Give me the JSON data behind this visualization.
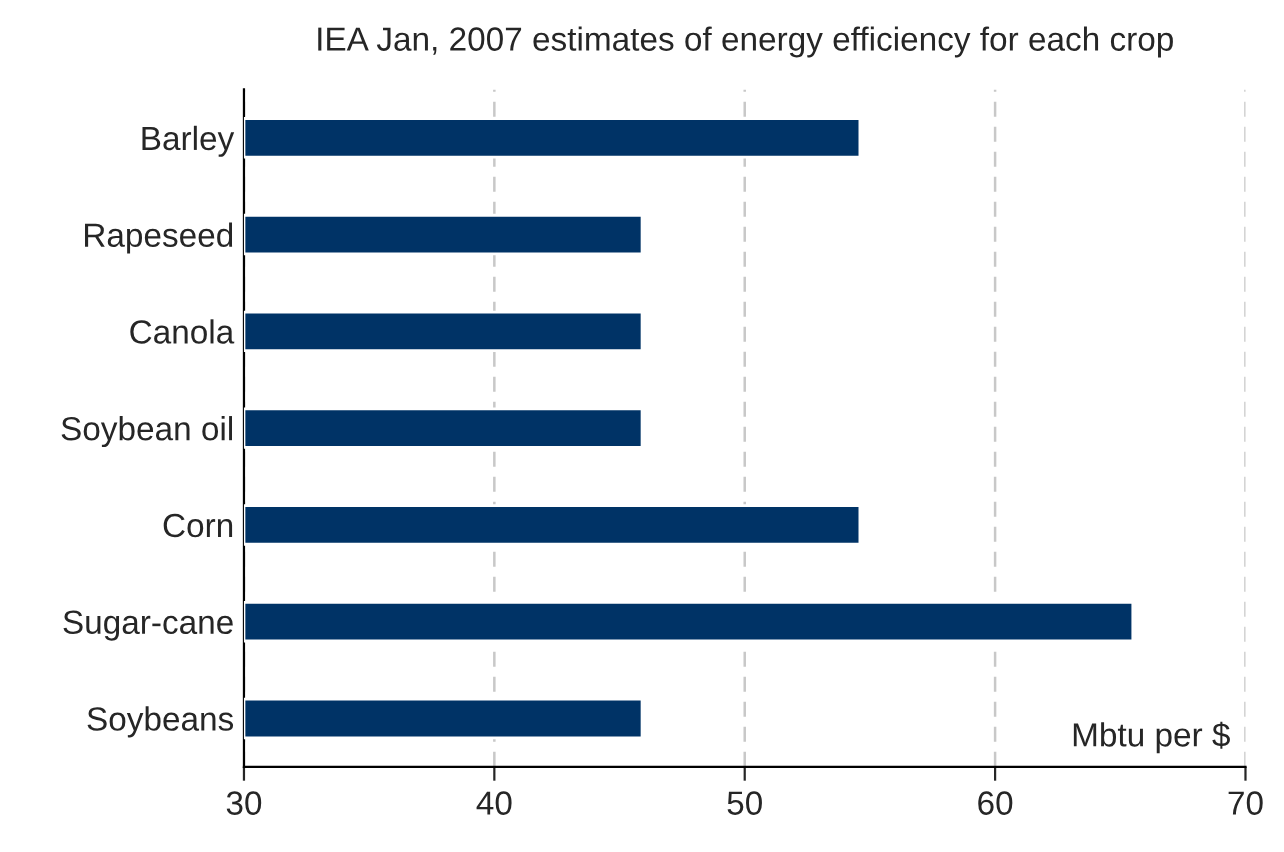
{
  "chart_data": {
    "type": "bar",
    "orientation": "horizontal",
    "title": "IEA Jan, 2007 estimates of energy efficiency for each crop",
    "xlabel": "Mbtu per $",
    "categories": [
      "Barley",
      "Rapeseed",
      "Canola",
      "Soybean oil",
      "Corn",
      "Sugar-cane",
      "Soybeans"
    ],
    "values": [
      54.6,
      45.9,
      45.9,
      45.9,
      54.6,
      65.5,
      45.9
    ],
    "color": "#003366",
    "xlim": [
      30,
      70
    ],
    "xticks": [
      30,
      40,
      50,
      60,
      70
    ],
    "grid": "x"
  }
}
